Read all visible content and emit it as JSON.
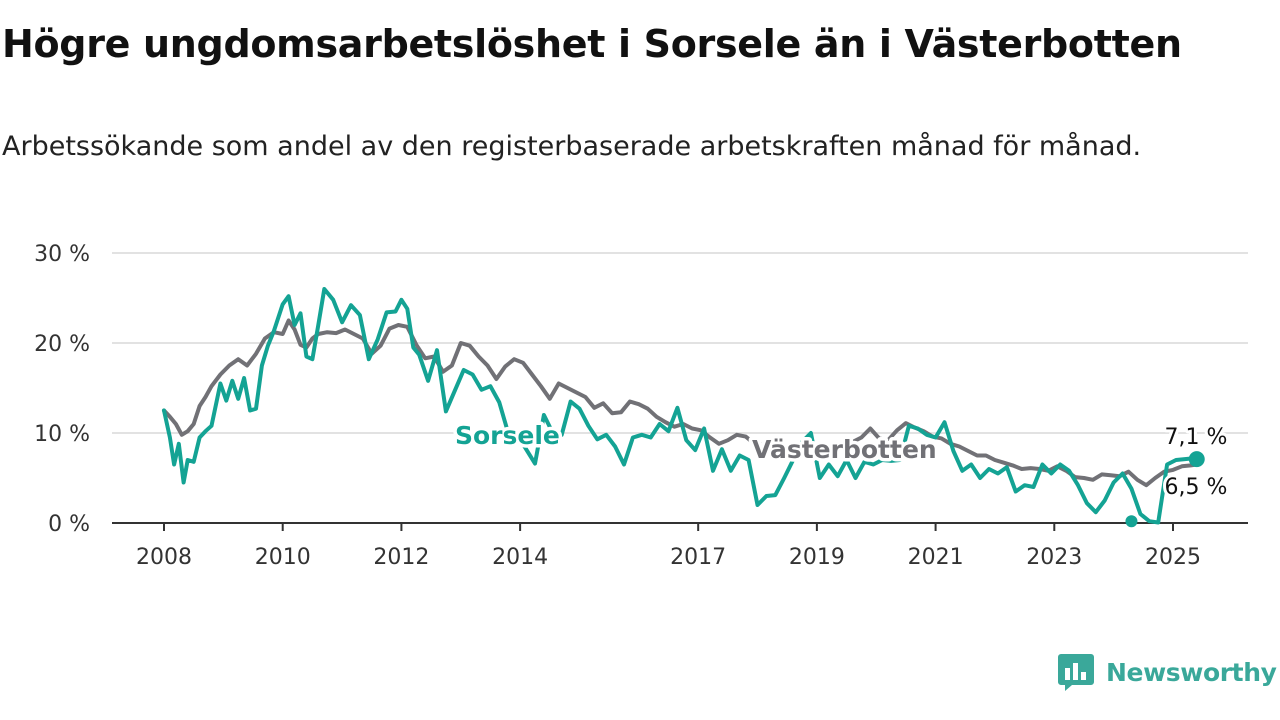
{
  "title": "Högre ungdomsarbetslöshet i Sorsele än i Västerbotten",
  "subtitle": "Arbetssökande som andel av den registerbaserade arbetskraften månad för månad.",
  "brand": {
    "name": "Newsworthy",
    "icon": "newsworthy-logo-icon",
    "color": "#3aa89a"
  },
  "colors": {
    "sorsele": "#14a394",
    "vasterbotten": "#717176",
    "grid": "#d9d9d9",
    "axis": "#333333"
  },
  "chart_data": {
    "type": "line",
    "title": "Högre ungdomsarbetslöshet i Sorsele än i Västerbotten",
    "subtitle": "Arbetssökande som andel av den registerbaserade arbetskraften månad för månad.",
    "xlabel": "",
    "ylabel": "",
    "ylim": [
      0,
      30
    ],
    "y_ticks": [
      0,
      10,
      20,
      30
    ],
    "y_tick_labels": [
      "0 %",
      "10 %",
      "20 %",
      "30 %"
    ],
    "x_ticks": [
      2008,
      2010,
      2012,
      2014,
      2017,
      2019,
      2021,
      2023,
      2025
    ],
    "x_tick_labels": [
      "2008",
      "2010",
      "2012",
      "2014",
      "2017",
      "2019",
      "2021",
      "2023",
      "2025"
    ],
    "xlim": [
      2007.9,
      2026.4
    ],
    "grid": "horizontal",
    "series": [
      {
        "name": "Sorsele",
        "color": "#14a394",
        "end_label": "7,1 %",
        "x": [
          2008.0,
          2008.1,
          2008.17,
          2008.25,
          2008.33,
          2008.4,
          2008.5,
          2008.6,
          2008.7,
          2008.8,
          2008.95,
          2009.05,
          2009.15,
          2009.25,
          2009.35,
          2009.45,
          2009.55,
          2009.65,
          2009.75,
          2009.85,
          2010.0,
          2010.1,
          2010.2,
          2010.3,
          2010.4,
          2010.5,
          2010.6,
          2010.7,
          2010.85,
          2011.0,
          2011.15,
          2011.3,
          2011.45,
          2011.6,
          2011.75,
          2011.9,
          2012.0,
          2012.1,
          2012.2,
          2012.3,
          2012.45,
          2012.6,
          2012.75,
          2012.9,
          2013.05,
          2013.2,
          2013.35,
          2013.5,
          2013.65,
          2013.8,
          2013.95,
          2014.1,
          2014.25,
          2014.4,
          2014.55,
          2014.7,
          2014.85,
          2015.0,
          2015.15,
          2015.3,
          2015.45,
          2015.6,
          2015.75,
          2015.9,
          2016.05,
          2016.2,
          2016.35,
          2016.5,
          2016.65,
          2016.8,
          2016.95,
          2017.1,
          2017.25,
          2017.4,
          2017.55,
          2017.7,
          2017.85,
          2018.0,
          2018.15,
          2018.3,
          2018.45,
          2018.6,
          2018.75,
          2018.9,
          2019.05,
          2019.2,
          2019.35,
          2019.5,
          2019.65,
          2019.8,
          2019.95,
          2020.1,
          2020.25,
          2020.4,
          2020.55,
          2020.7,
          2020.85,
          2021.0,
          2021.15,
          2021.3,
          2021.45,
          2021.6,
          2021.75,
          2021.9,
          2022.05,
          2022.2,
          2022.35,
          2022.5,
          2022.65,
          2022.8,
          2022.95,
          2023.1,
          2023.25,
          2023.4,
          2023.55,
          2023.7,
          2023.85,
          2024.0,
          2024.15,
          2024.3,
          2024.45,
          2024.6,
          2024.75,
          2024.9,
          2025.05,
          2025.2,
          2025.35,
          2025.4
        ],
        "values": [
          12.5,
          9.5,
          6.5,
          8.8,
          4.5,
          7,
          6.8,
          9.5,
          10.2,
          10.8,
          15.5,
          13.6,
          15.8,
          13.8,
          16.1,
          12.5,
          12.7,
          17.5,
          19.7,
          21.3,
          24.3,
          25.2,
          22,
          23.3,
          18.5,
          18.2,
          22,
          26,
          24.8,
          22.3,
          24.2,
          23.1,
          18.2,
          20.4,
          23.4,
          23.5,
          24.8,
          23.8,
          19.5,
          18.7,
          15.8,
          19.2,
          12.4,
          14.7,
          17,
          16.5,
          14.8,
          15.2,
          13.4,
          10,
          9.8,
          8.2,
          6.6,
          12,
          10,
          9.8,
          13.5,
          12.7,
          10.8,
          9.3,
          9.8,
          8.5,
          6.5,
          9.5,
          9.8,
          9.5,
          11,
          10.2,
          12.8,
          9.2,
          8.1,
          10.5,
          5.8,
          8.2,
          5.8,
          7.5,
          7,
          2,
          3,
          3.1,
          5,
          7,
          9,
          10,
          5,
          6.5,
          5.2,
          7,
          5,
          6.8,
          6.5,
          7,
          6.9,
          7,
          10.8,
          10.5,
          9.8,
          9.5,
          11.2,
          8,
          5.8,
          6.5,
          5,
          6,
          5.5,
          6.2,
          3.5,
          4.2,
          4,
          6.5,
          5.5,
          6.5,
          5.8,
          4.2,
          2.2,
          1.2,
          2.5,
          4.5,
          5.5,
          3.8,
          1,
          0.2,
          0.05,
          6.5,
          7,
          7.1,
          7.2,
          7.1
        ]
      },
      {
        "name": "Västerbotten",
        "color": "#717176",
        "end_label": "6,5 %",
        "x": [
          2008.0,
          2008.1,
          2008.2,
          2008.3,
          2008.4,
          2008.5,
          2008.6,
          2008.7,
          2008.8,
          2008.95,
          2009.1,
          2009.25,
          2009.4,
          2009.55,
          2009.7,
          2009.85,
          2010.0,
          2010.1,
          2010.2,
          2010.3,
          2010.4,
          2010.5,
          2010.6,
          2010.75,
          2010.9,
          2011.05,
          2011.2,
          2011.35,
          2011.5,
          2011.65,
          2011.8,
          2011.95,
          2012.1,
          2012.25,
          2012.4,
          2012.55,
          2012.7,
          2012.85,
          2013.0,
          2013.15,
          2013.3,
          2013.45,
          2013.6,
          2013.75,
          2013.9,
          2014.05,
          2014.2,
          2014.35,
          2014.5,
          2014.65,
          2014.8,
          2014.95,
          2015.1,
          2015.25,
          2015.4,
          2015.55,
          2015.7,
          2015.85,
          2016.0,
          2016.15,
          2016.3,
          2016.45,
          2016.6,
          2016.75,
          2016.9,
          2017.05,
          2017.2,
          2017.35,
          2017.5,
          2017.65,
          2017.8,
          2017.95,
          2018.1,
          2018.25,
          2018.4,
          2018.55,
          2018.7,
          2018.85,
          2019.0,
          2019.15,
          2019.3,
          2019.45,
          2019.6,
          2019.75,
          2019.9,
          2020.05,
          2020.2,
          2020.35,
          2020.5,
          2020.65,
          2020.8,
          2020.95,
          2021.1,
          2021.25,
          2021.4,
          2021.55,
          2021.7,
          2021.85,
          2022.0,
          2022.15,
          2022.3,
          2022.45,
          2022.6,
          2022.75,
          2022.9,
          2023.05,
          2023.2,
          2023.35,
          2023.5,
          2023.65,
          2023.8,
          2023.95,
          2024.1,
          2024.25,
          2024.4,
          2024.55,
          2024.7,
          2024.85,
          2025.0,
          2025.15,
          2025.3,
          2025.4
        ],
        "values": [
          12.5,
          11.8,
          11,
          9.8,
          10.2,
          11,
          13,
          14,
          15.2,
          16.5,
          17.5,
          18.2,
          17.5,
          18.8,
          20.5,
          21.2,
          21,
          22.5,
          21.5,
          19.8,
          19.5,
          20.5,
          21,
          21.2,
          21.1,
          21.5,
          21,
          20.5,
          18.8,
          19.7,
          21.6,
          22,
          21.8,
          19.8,
          18.3,
          18.5,
          16.8,
          17.5,
          20,
          19.7,
          18.5,
          17.5,
          16,
          17.4,
          18.2,
          17.8,
          16.5,
          15.2,
          13.8,
          15.5,
          15,
          14.5,
          14,
          12.8,
          13.3,
          12.2,
          12.3,
          13.5,
          13.2,
          12.7,
          11.8,
          11.2,
          10.7,
          11,
          10.5,
          10.3,
          9.5,
          8.8,
          9.2,
          9.8,
          9.6,
          8.8,
          8.7,
          9,
          8.5,
          8.2,
          8.2,
          8.3,
          7.7,
          8.3,
          8.5,
          8.6,
          9,
          9.5,
          10.5,
          9.4,
          9.2,
          10.3,
          11.1,
          10.6,
          10.2,
          9.6,
          9.4,
          8.8,
          8.5,
          8,
          7.5,
          7.5,
          7,
          6.7,
          6.4,
          6,
          6.1,
          6,
          5.8,
          6.3,
          5.8,
          5.1,
          5,
          4.8,
          5.4,
          5.3,
          5.2,
          5.7,
          4.8,
          4.2,
          5,
          5.7,
          5.9,
          6.3,
          6.4,
          6.5
        ]
      }
    ]
  }
}
